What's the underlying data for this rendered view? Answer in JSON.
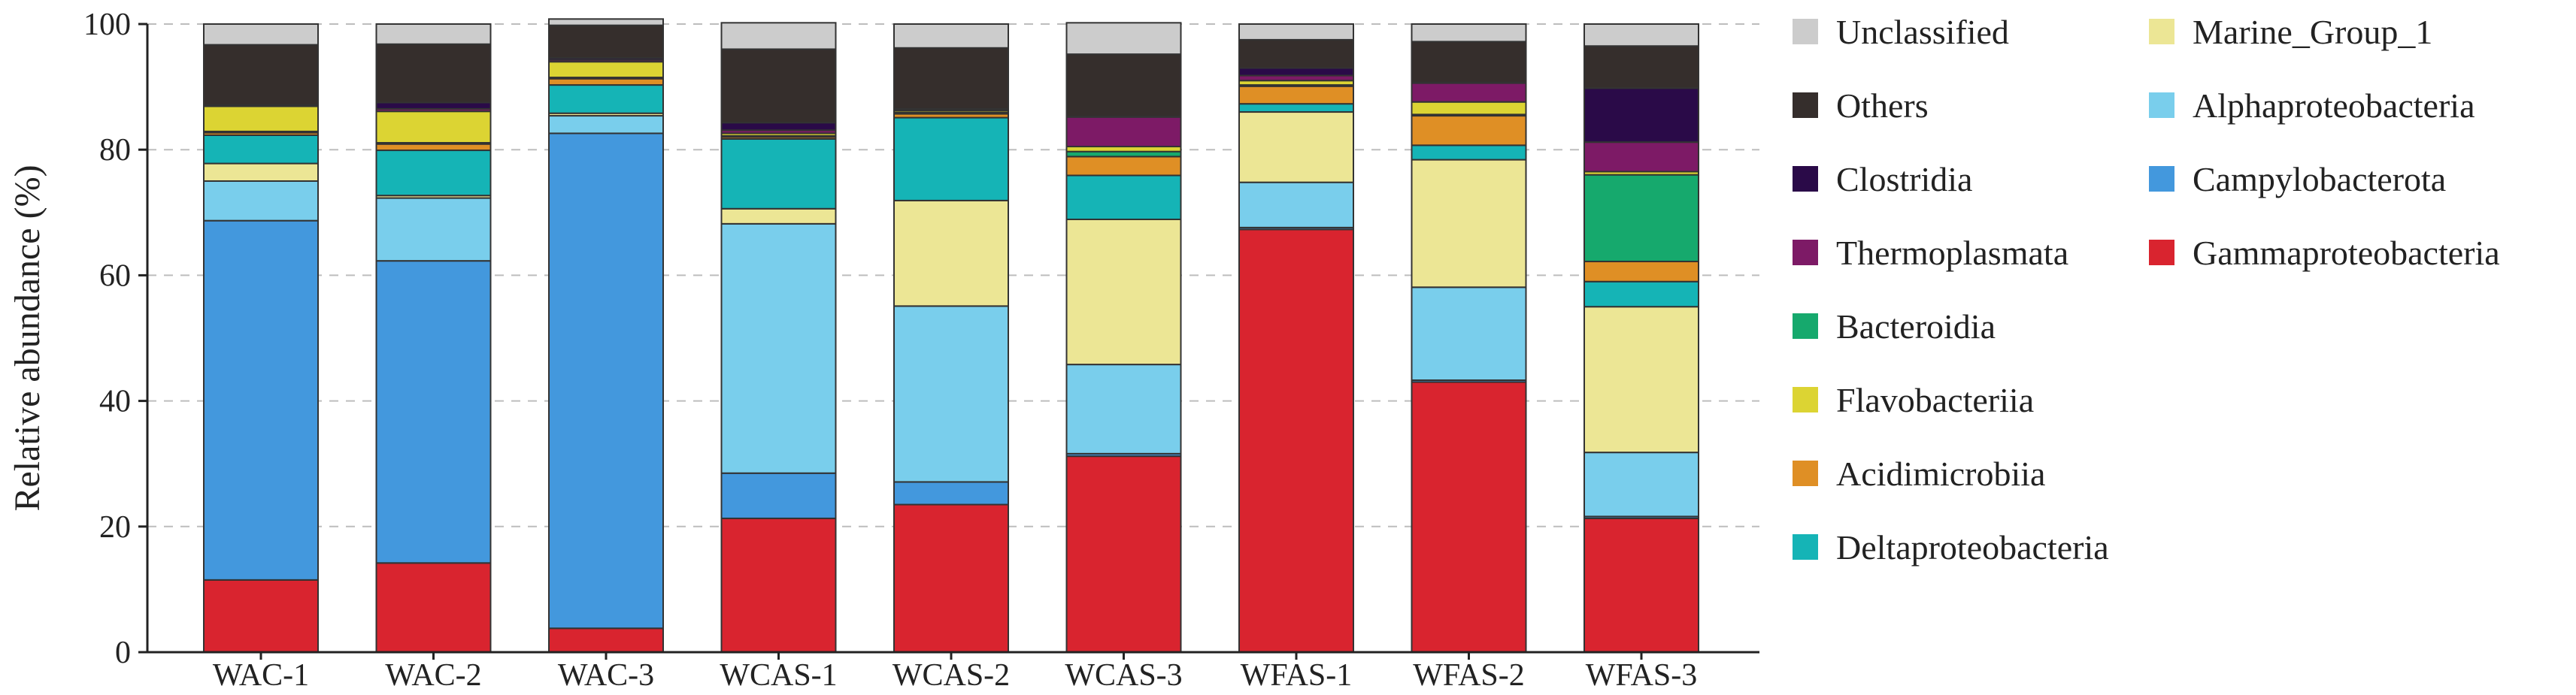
{
  "chart_data": {
    "type": "bar",
    "stacked": true,
    "title": "",
    "xlabel": "",
    "ylabel": "Relative abundance (%)",
    "ylim": [
      0,
      100
    ],
    "yticks": [
      0,
      20,
      40,
      60,
      80,
      100
    ],
    "grid": "horizontal-dashed",
    "legend_position": "right",
    "categories": [
      "WAC-1",
      "WAC-2",
      "WAC-3",
      "WCAS-1",
      "WCAS-2",
      "WCAS-3",
      "WFAS-1",
      "WFAS-2",
      "WFAS-3"
    ],
    "series": [
      {
        "name": "Gammaproteobacteria",
        "color": "#d9242f",
        "values": [
          11.5,
          14.2,
          3.8,
          21.3,
          23.5,
          31.2,
          67.3,
          43.0,
          21.3
        ]
      },
      {
        "name": "Campylobacterota",
        "color": "#4398dd",
        "values": [
          57.2,
          48.1,
          78.8,
          7.2,
          3.6,
          0.4,
          0.3,
          0.3,
          0.3
        ]
      },
      {
        "name": "Alphaproteobacteria",
        "color": "#79ceec",
        "values": [
          6.3,
          10.0,
          2.8,
          39.7,
          28.0,
          14.2,
          7.2,
          14.8,
          10.2
        ]
      },
      {
        "name": "Marine_Group_1",
        "color": "#ece695",
        "values": [
          2.8,
          0.4,
          0.4,
          2.4,
          16.8,
          23.1,
          11.2,
          20.3,
          23.2
        ]
      },
      {
        "name": "Deltaproteobacteria",
        "color": "#15b4b6",
        "values": [
          4.5,
          7.2,
          4.5,
          11.1,
          13.2,
          7.0,
          1.3,
          2.3,
          4.0
        ]
      },
      {
        "name": "Acidimicrobiia",
        "color": "#df8f25",
        "values": [
          0.4,
          1.0,
          1.0,
          0.3,
          0.6,
          3.0,
          2.8,
          4.7,
          3.2
        ]
      },
      {
        "name": "Bacteroidia",
        "color": "#16a96d",
        "values": [
          0.2,
          0.2,
          0.2,
          0.2,
          0.2,
          0.8,
          0.2,
          0.2,
          13.8
        ]
      },
      {
        "name": "Flavobacteriia",
        "color": "#dcd433",
        "values": [
          4.0,
          5.0,
          2.5,
          0.4,
          0.3,
          0.8,
          0.7,
          2.0,
          0.5
        ]
      },
      {
        "name": "Thermoplasmata",
        "color": "#7d1a66",
        "values": [
          0.1,
          0.4,
          0.3,
          0.5,
          0.2,
          4.7,
          0.8,
          3.0,
          4.7
        ]
      },
      {
        "name": "Clostridia",
        "color": "#2a0a48",
        "values": [
          0.1,
          1.0,
          0.3,
          1.2,
          0.1,
          0.1,
          1.2,
          0.1,
          8.6
        ]
      },
      {
        "name": "Others",
        "color": "#352e2c",
        "values": [
          9.6,
          9.3,
          5.2,
          11.7,
          9.7,
          9.9,
          4.5,
          6.5,
          6.7
        ]
      },
      {
        "name": "Unclassified",
        "color": "#cccccc",
        "values": [
          3.3,
          3.2,
          1.0,
          4.2,
          3.8,
          5.0,
          2.5,
          2.8,
          3.5
        ]
      }
    ],
    "legend_columns": [
      [
        "Unclassified",
        "Others",
        "Clostridia",
        "Thermoplasmata",
        "Bacteroidia",
        "Flavobacteriia",
        "Acidimicrobiia",
        "Deltaproteobacteria"
      ],
      [
        "Marine_Group_1",
        "Alphaproteobacteria",
        "Campylobacterota",
        "Gammaproteobacteria"
      ]
    ]
  }
}
